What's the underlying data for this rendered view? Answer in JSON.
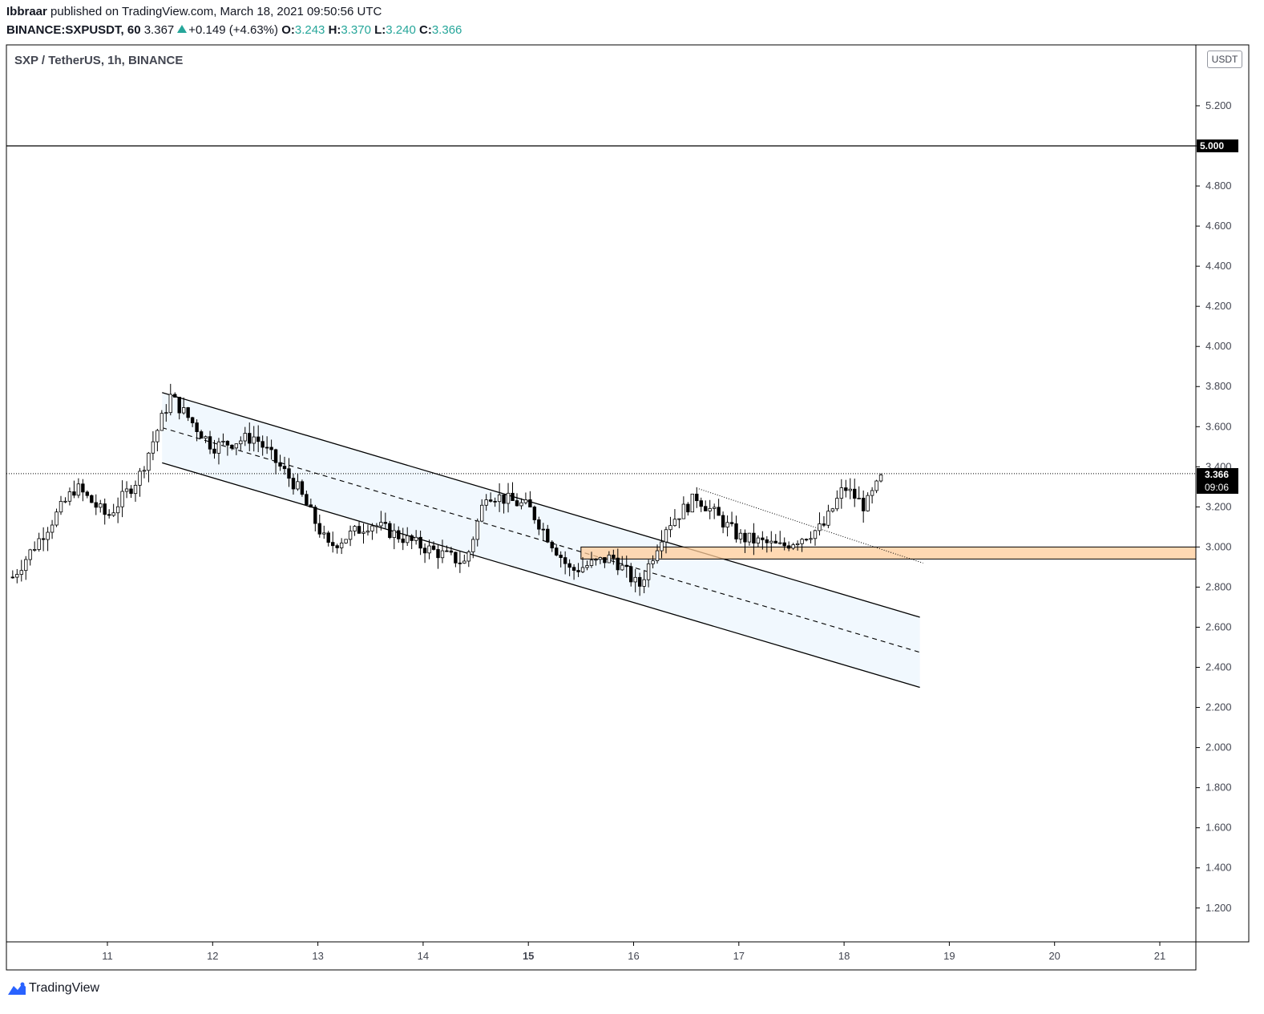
{
  "header": {
    "author": "Ibbraar",
    "published_text": " published on TradingView.com, March 18, 2021 09:50:56 UTC",
    "symbol": "BINANCE:SXPUSDT, 60",
    "last": "3.367",
    "change": "+0.149 (+4.63%)",
    "o_label": "O:",
    "o": "3.243",
    "h_label": "H:",
    "h": "3.370",
    "l_label": "L:",
    "l": "3.240",
    "c_label": "C:",
    "c": "3.366"
  },
  "legend": "SXP / TetherUS, 1h, BINANCE",
  "currency": "USDT",
  "level_label": "5.000",
  "last_price": {
    "price": "3.366",
    "countdown": "09:06"
  },
  "brand": "TradingView",
  "colors": {
    "up": "#ffffff",
    "down": "#000000",
    "channel_fill": "#e3f2fd",
    "zone_fill": "#ffcc99"
  },
  "chart_data": {
    "type": "candlestick",
    "title": "SXP / TetherUS, 1h, BINANCE",
    "x_ticks": [
      "11",
      "12",
      "13",
      "14",
      "15",
      "16",
      "17",
      "18",
      "19",
      "20",
      "21"
    ],
    "y_ticks": [
      "1.200",
      "1.400",
      "1.600",
      "1.800",
      "2.000",
      "2.200",
      "2.400",
      "2.600",
      "2.800",
      "3.000",
      "3.200",
      "3.400",
      "3.600",
      "3.800",
      "4.000",
      "4.200",
      "4.400",
      "4.600",
      "4.800",
      "5.000",
      "5.200"
    ],
    "ylim": [
      1.0,
      5.4
    ],
    "xlim_days": [
      10.1,
      21.4
    ],
    "horizontal_level": 5.0,
    "last_price": 3.366,
    "support_zone": [
      2.94,
      3.0
    ],
    "channel": {
      "upper": [
        [
          11.52,
          3.77
        ],
        [
          18.72,
          2.65
        ]
      ],
      "lower": [
        [
          11.52,
          3.42
        ],
        [
          18.72,
          2.3
        ]
      ],
      "mid": [
        [
          11.52,
          3.595
        ],
        [
          18.72,
          2.475
        ]
      ]
    },
    "trendline": [
      [
        16.62,
        3.29
      ],
      [
        18.75,
        2.92
      ]
    ],
    "key_points": [
      {
        "day": 10.1,
        "price": 2.85
      },
      {
        "day": 10.7,
        "price": 3.3
      },
      {
        "day": 11.0,
        "price": 3.15
      },
      {
        "day": 11.3,
        "price": 3.35
      },
      {
        "day": 11.6,
        "price": 3.75
      },
      {
        "day": 12.0,
        "price": 3.5
      },
      {
        "day": 12.4,
        "price": 3.55
      },
      {
        "day": 12.8,
        "price": 3.3
      },
      {
        "day": 13.1,
        "price": 3.0
      },
      {
        "day": 13.5,
        "price": 3.12
      },
      {
        "day": 14.0,
        "price": 3.0
      },
      {
        "day": 14.4,
        "price": 2.92
      },
      {
        "day": 14.6,
        "price": 3.27
      },
      {
        "day": 15.0,
        "price": 3.2
      },
      {
        "day": 15.4,
        "price": 2.88
      },
      {
        "day": 15.8,
        "price": 2.95
      },
      {
        "day": 16.05,
        "price": 2.8
      },
      {
        "day": 16.3,
        "price": 3.1
      },
      {
        "day": 16.6,
        "price": 3.25
      },
      {
        "day": 17.0,
        "price": 3.05
      },
      {
        "day": 17.4,
        "price": 3.0
      },
      {
        "day": 17.8,
        "price": 3.1
      },
      {
        "day": 18.0,
        "price": 3.3
      },
      {
        "day": 18.2,
        "price": 3.2
      },
      {
        "day": 18.38,
        "price": 3.366
      }
    ]
  }
}
